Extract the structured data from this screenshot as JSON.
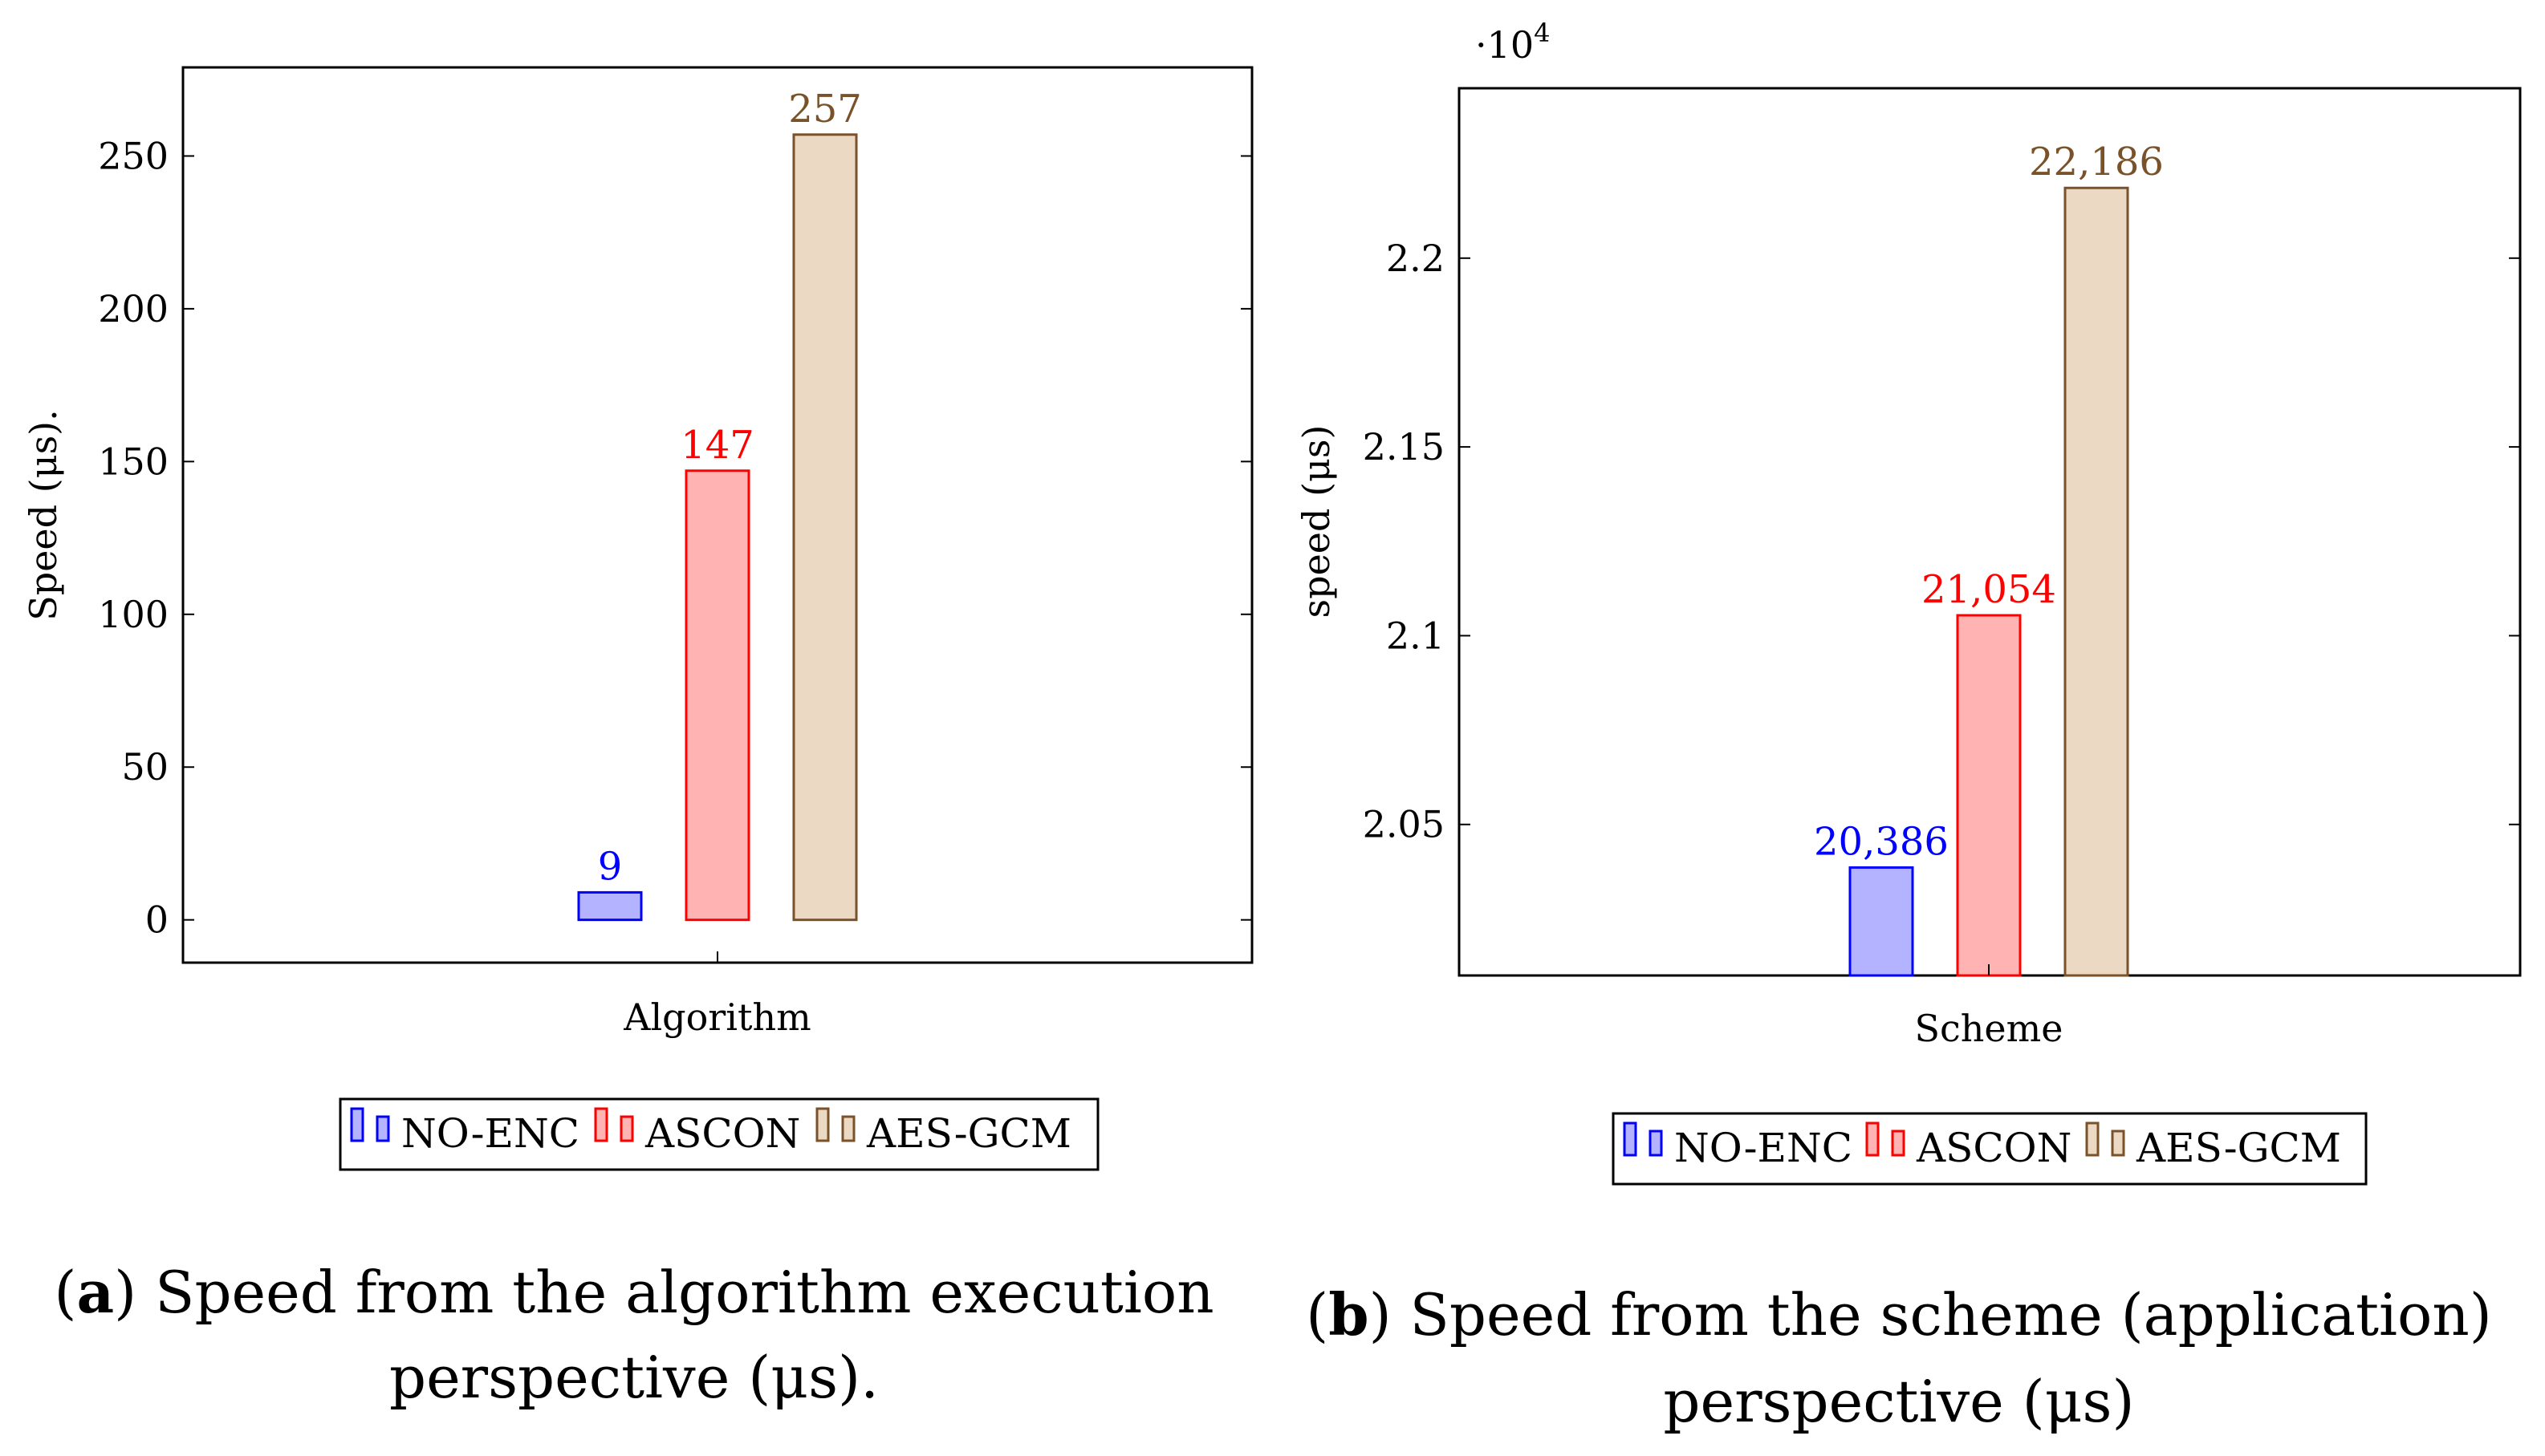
{
  "chart_data": [
    {
      "type": "bar",
      "categories": [
        "Algorithm"
      ],
      "series": [
        {
          "name": "NO-ENC",
          "values": [
            9
          ],
          "label": "9",
          "color": "#0000ff",
          "fill": "#b3b3ff"
        },
        {
          "name": "ASCON",
          "values": [
            147
          ],
          "label": "147",
          "color": "#ff0000",
          "fill": "#ffb3b3"
        },
        {
          "name": "AES-GCM",
          "values": [
            257
          ],
          "label": "257",
          "color": "#7a5229",
          "fill": "#ebd9c4"
        }
      ],
      "xlabel": "Algorithm",
      "ylabel": "Speed (μs).",
      "ylim": [
        -14,
        279
      ],
      "yticks": [
        0,
        50,
        100,
        150,
        200,
        250
      ],
      "ytick_labels": [
        "0",
        "50",
        "100",
        "150",
        "200",
        "250"
      ],
      "legend": "bottom-center",
      "caption_letter": "a",
      "caption_text": ") Speed from the algorithm execution",
      "caption_text2": "perspective (μs)."
    },
    {
      "type": "bar",
      "categories": [
        "Scheme"
      ],
      "series": [
        {
          "name": "NO-ENC",
          "values": [
            20386
          ],
          "label": "20,386",
          "color": "#0000ff",
          "fill": "#b3b3ff"
        },
        {
          "name": "ASCON",
          "values": [
            21054
          ],
          "label": "21,054",
          "color": "#ff0000",
          "fill": "#ffb3b3"
        },
        {
          "name": "AES-GCM",
          "values": [
            22186
          ],
          "label": "22,186",
          "color": "#7a5229",
          "fill": "#ebd9c4"
        }
      ],
      "xlabel": "Scheme",
      "ylabel": "speed (μs)",
      "ylim": [
        20100,
        22450
      ],
      "yticks": [
        20500,
        21000,
        21500,
        22000
      ],
      "ytick_labels": [
        "2.05",
        "2.1",
        "2.15",
        "2.2"
      ],
      "multiplier": "·10",
      "multiplier_exp": "4",
      "legend": "bottom-center",
      "caption_letter": "b",
      "caption_text": ") Speed from the scheme (application)",
      "caption_text2": "perspective (μs)"
    }
  ]
}
